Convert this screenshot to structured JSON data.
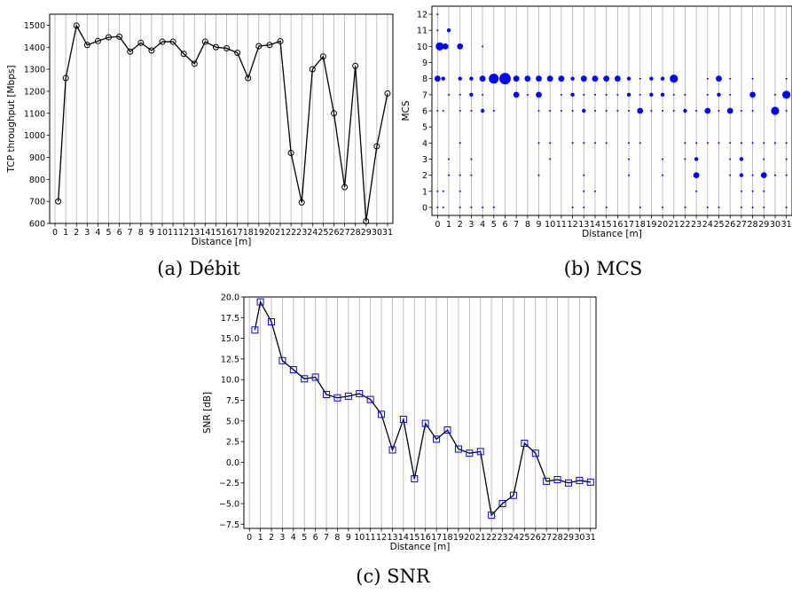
{
  "chart_data": [
    {
      "type": "line",
      "caption": "(a) Débit",
      "xlabel": "Distance [m]",
      "ylabel": "TCP throughput [Mbps]",
      "xlim": [
        -0.5,
        31.5
      ],
      "ylim": [
        600,
        1550
      ],
      "xticks": [
        0,
        1,
        2,
        3,
        4,
        5,
        6,
        7,
        8,
        9,
        10,
        11,
        12,
        13,
        14,
        15,
        16,
        17,
        18,
        19,
        20,
        21,
        22,
        23,
        24,
        25,
        26,
        27,
        28,
        29,
        30,
        31
      ],
      "yticks": [
        600,
        700,
        800,
        900,
        1000,
        1100,
        1200,
        1300,
        1400,
        1500
      ],
      "grid": "vertical",
      "marker": "circle",
      "series": [
        {
          "x": [
            0.3,
            1,
            2,
            3,
            4,
            5,
            6,
            7,
            8,
            9,
            10,
            11,
            12,
            13,
            14,
            15,
            16,
            17,
            18,
            19,
            20,
            21,
            22,
            23,
            24,
            25,
            26,
            27,
            28,
            29,
            30,
            31
          ],
          "values": [
            700,
            1260,
            1498,
            1410,
            1428,
            1445,
            1448,
            1380,
            1420,
            1385,
            1425,
            1425,
            1370,
            1325,
            1425,
            1400,
            1395,
            1375,
            1260,
            1405,
            1410,
            1427,
            920,
            695,
            1300,
            1358,
            1100,
            765,
            1315,
            610,
            950,
            1190
          ]
        }
      ]
    },
    {
      "type": "scatter",
      "caption": "(b) MCS",
      "xlabel": "Distance [m]",
      "ylabel": "MCS",
      "xlim": [
        -0.5,
        31.5
      ],
      "ylim": [
        -0.5,
        12.5
      ],
      "xticks": [
        0,
        1,
        2,
        3,
        4,
        5,
        6,
        7,
        8,
        9,
        10,
        11,
        12,
        13,
        14,
        15,
        16,
        17,
        18,
        19,
        20,
        21,
        22,
        23,
        24,
        25,
        26,
        27,
        28,
        29,
        30,
        31
      ],
      "yticks": [
        0,
        1,
        2,
        3,
        4,
        5,
        6,
        7,
        8,
        9,
        10,
        11,
        12
      ],
      "grid": "vertical",
      "color": "#0000ff",
      "points": [
        {
          "x": 0,
          "y": 12,
          "s": 1
        },
        {
          "x": 0,
          "y": 11,
          "s": 1
        },
        {
          "x": 0.2,
          "y": 10,
          "s": 4
        },
        {
          "x": 0.7,
          "y": 10,
          "s": 3
        },
        {
          "x": 1,
          "y": 11,
          "s": 2
        },
        {
          "x": 0,
          "y": 8,
          "s": 3
        },
        {
          "x": 0.5,
          "y": 8,
          "s": 2
        },
        {
          "x": 0,
          "y": 6,
          "s": 1
        },
        {
          "x": 0.5,
          "y": 6,
          "s": 1
        },
        {
          "x": 0,
          "y": 1,
          "s": 1
        },
        {
          "x": 0.5,
          "y": 1,
          "s": 1
        },
        {
          "x": 0,
          "y": 0,
          "s": 1
        },
        {
          "x": 0.5,
          "y": 0,
          "s": 1
        },
        {
          "x": 1,
          "y": 7,
          "s": 1
        },
        {
          "x": 1,
          "y": 3,
          "s": 1
        },
        {
          "x": 1,
          "y": 2,
          "s": 1
        },
        {
          "x": 2,
          "y": 10,
          "s": 3
        },
        {
          "x": 2,
          "y": 8,
          "s": 2
        },
        {
          "x": 2,
          "y": 7,
          "s": 1
        },
        {
          "x": 2,
          "y": 6,
          "s": 1
        },
        {
          "x": 2,
          "y": 4,
          "s": 1
        },
        {
          "x": 2,
          "y": 2,
          "s": 1
        },
        {
          "x": 2,
          "y": 1,
          "s": 1
        },
        {
          "x": 2,
          "y": 0,
          "s": 1
        },
        {
          "x": 3,
          "y": 8,
          "s": 2
        },
        {
          "x": 3,
          "y": 7,
          "s": 2
        },
        {
          "x": 3,
          "y": 6,
          "s": 1
        },
        {
          "x": 3,
          "y": 3,
          "s": 1
        },
        {
          "x": 3,
          "y": 2,
          "s": 1
        },
        {
          "x": 3,
          "y": 0,
          "s": 1
        },
        {
          "x": 4,
          "y": 10,
          "s": 1
        },
        {
          "x": 4,
          "y": 8,
          "s": 3
        },
        {
          "x": 4,
          "y": 7,
          "s": 1
        },
        {
          "x": 4,
          "y": 6,
          "s": 2
        },
        {
          "x": 4,
          "y": 0,
          "s": 1
        },
        {
          "x": 5,
          "y": 8,
          "s": 5
        },
        {
          "x": 5,
          "y": 6,
          "s": 1
        },
        {
          "x": 5,
          "y": 0,
          "s": 1
        },
        {
          "x": 6,
          "y": 8,
          "s": 6
        },
        {
          "x": 7,
          "y": 8,
          "s": 3
        },
        {
          "x": 7,
          "y": 7,
          "s": 3
        },
        {
          "x": 8,
          "y": 8,
          "s": 3
        },
        {
          "x": 8,
          "y": 7,
          "s": 1
        },
        {
          "x": 9,
          "y": 8,
          "s": 3
        },
        {
          "x": 9,
          "y": 7,
          "s": 3
        },
        {
          "x": 9,
          "y": 6,
          "s": 1
        },
        {
          "x": 9,
          "y": 4,
          "s": 1
        },
        {
          "x": 9,
          "y": 2,
          "s": 1
        },
        {
          "x": 10,
          "y": 8,
          "s": 3
        },
        {
          "x": 10,
          "y": 6,
          "s": 1
        },
        {
          "x": 10,
          "y": 4,
          "s": 1
        },
        {
          "x": 10,
          "y": 3,
          "s": 1
        },
        {
          "x": 11,
          "y": 8,
          "s": 3
        },
        {
          "x": 11,
          "y": 7,
          "s": 1
        },
        {
          "x": 11,
          "y": 6,
          "s": 1
        },
        {
          "x": 12,
          "y": 8,
          "s": 2
        },
        {
          "x": 12,
          "y": 7,
          "s": 2
        },
        {
          "x": 12,
          "y": 6,
          "s": 1
        },
        {
          "x": 12,
          "y": 4,
          "s": 1
        },
        {
          "x": 12,
          "y": 0,
          "s": 1
        },
        {
          "x": 13,
          "y": 8,
          "s": 3
        },
        {
          "x": 13,
          "y": 7,
          "s": 1
        },
        {
          "x": 13,
          "y": 6,
          "s": 2
        },
        {
          "x": 13,
          "y": 4,
          "s": 1
        },
        {
          "x": 13,
          "y": 2,
          "s": 1
        },
        {
          "x": 13,
          "y": 1,
          "s": 1
        },
        {
          "x": 13,
          "y": 0,
          "s": 1
        },
        {
          "x": 14,
          "y": 8,
          "s": 3
        },
        {
          "x": 14,
          "y": 7,
          "s": 1
        },
        {
          "x": 14,
          "y": 6,
          "s": 1
        },
        {
          "x": 14,
          "y": 4,
          "s": 1
        },
        {
          "x": 14,
          "y": 1,
          "s": 1
        },
        {
          "x": 15,
          "y": 8,
          "s": 3
        },
        {
          "x": 15,
          "y": 7,
          "s": 1
        },
        {
          "x": 15,
          "y": 6,
          "s": 1
        },
        {
          "x": 15,
          "y": 4,
          "s": 1
        },
        {
          "x": 15,
          "y": 0,
          "s": 1
        },
        {
          "x": 16,
          "y": 8,
          "s": 3
        },
        {
          "x": 16,
          "y": 7,
          "s": 1
        },
        {
          "x": 16,
          "y": 6,
          "s": 1
        },
        {
          "x": 17,
          "y": 8,
          "s": 2
        },
        {
          "x": 17,
          "y": 7,
          "s": 2
        },
        {
          "x": 17,
          "y": 6,
          "s": 1
        },
        {
          "x": 17,
          "y": 4,
          "s": 1
        },
        {
          "x": 17,
          "y": 3,
          "s": 1
        },
        {
          "x": 17,
          "y": 2,
          "s": 1
        },
        {
          "x": 18,
          "y": 8,
          "s": 1
        },
        {
          "x": 18,
          "y": 7,
          "s": 1
        },
        {
          "x": 18,
          "y": 6,
          "s": 3
        },
        {
          "x": 18,
          "y": 4,
          "s": 1
        },
        {
          "x": 18,
          "y": 0,
          "s": 1
        },
        {
          "x": 19,
          "y": 8,
          "s": 2
        },
        {
          "x": 19,
          "y": 7,
          "s": 2
        },
        {
          "x": 19,
          "y": 6,
          "s": 1
        },
        {
          "x": 20,
          "y": 8,
          "s": 2
        },
        {
          "x": 20,
          "y": 7,
          "s": 2
        },
        {
          "x": 20,
          "y": 6,
          "s": 1
        },
        {
          "x": 20,
          "y": 3,
          "s": 1
        },
        {
          "x": 20,
          "y": 2,
          "s": 1
        },
        {
          "x": 20,
          "y": 0,
          "s": 1
        },
        {
          "x": 21,
          "y": 8,
          "s": 4
        },
        {
          "x": 21,
          "y": 7,
          "s": 1
        },
        {
          "x": 21,
          "y": 6,
          "s": 1
        },
        {
          "x": 22,
          "y": 7,
          "s": 1
        },
        {
          "x": 22,
          "y": 6,
          "s": 2
        },
        {
          "x": 22,
          "y": 4,
          "s": 1
        },
        {
          "x": 22,
          "y": 3,
          "s": 1
        },
        {
          "x": 22,
          "y": 0,
          "s": 1
        },
        {
          "x": 23,
          "y": 6,
          "s": 1
        },
        {
          "x": 23,
          "y": 4,
          "s": 1
        },
        {
          "x": 23,
          "y": 3,
          "s": 2
        },
        {
          "x": 23,
          "y": 2,
          "s": 3
        },
        {
          "x": 23,
          "y": 1,
          "s": 1
        },
        {
          "x": 24,
          "y": 8,
          "s": 1
        },
        {
          "x": 24,
          "y": 7,
          "s": 1
        },
        {
          "x": 24,
          "y": 6,
          "s": 3
        },
        {
          "x": 24,
          "y": 4,
          "s": 1
        },
        {
          "x": 24,
          "y": 0,
          "s": 1
        },
        {
          "x": 25,
          "y": 8,
          "s": 3
        },
        {
          "x": 25,
          "y": 7,
          "s": 2
        },
        {
          "x": 25,
          "y": 6,
          "s": 1
        },
        {
          "x": 25,
          "y": 4,
          "s": 1
        },
        {
          "x": 25,
          "y": 0,
          "s": 1
        },
        {
          "x": 26,
          "y": 8,
          "s": 1
        },
        {
          "x": 26,
          "y": 7,
          "s": 1
        },
        {
          "x": 26,
          "y": 6,
          "s": 3
        },
        {
          "x": 26,
          "y": 4,
          "s": 1
        },
        {
          "x": 26,
          "y": 3,
          "s": 1
        },
        {
          "x": 26,
          "y": 2,
          "s": 1
        },
        {
          "x": 27,
          "y": 6,
          "s": 1
        },
        {
          "x": 27,
          "y": 4,
          "s": 1
        },
        {
          "x": 27,
          "y": 3,
          "s": 2
        },
        {
          "x": 27,
          "y": 2,
          "s": 2
        },
        {
          "x": 27,
          "y": 1,
          "s": 1
        },
        {
          "x": 27,
          "y": 0,
          "s": 1
        },
        {
          "x": 28,
          "y": 8,
          "s": 1
        },
        {
          "x": 28,
          "y": 7,
          "s": 3
        },
        {
          "x": 28,
          "y": 6,
          "s": 1
        },
        {
          "x": 28,
          "y": 4,
          "s": 1
        },
        {
          "x": 28,
          "y": 2,
          "s": 1
        },
        {
          "x": 28,
          "y": 1,
          "s": 1
        },
        {
          "x": 28,
          "y": 0,
          "s": 1
        },
        {
          "x": 29,
          "y": 4,
          "s": 1
        },
        {
          "x": 29,
          "y": 3,
          "s": 1
        },
        {
          "x": 29,
          "y": 2,
          "s": 3
        },
        {
          "x": 29,
          "y": 1,
          "s": 1
        },
        {
          "x": 29,
          "y": 0,
          "s": 1
        },
        {
          "x": 30,
          "y": 7,
          "s": 1
        },
        {
          "x": 30,
          "y": 6,
          "s": 4
        },
        {
          "x": 30,
          "y": 4,
          "s": 1
        },
        {
          "x": 30,
          "y": 2,
          "s": 1
        },
        {
          "x": 31,
          "y": 8,
          "s": 1
        },
        {
          "x": 31,
          "y": 7,
          "s": 4
        },
        {
          "x": 31,
          "y": 6,
          "s": 1
        },
        {
          "x": 31,
          "y": 4,
          "s": 1
        },
        {
          "x": 31,
          "y": 3,
          "s": 1
        },
        {
          "x": 31,
          "y": 2,
          "s": 1
        },
        {
          "x": 31,
          "y": 0,
          "s": 1
        }
      ]
    },
    {
      "type": "line",
      "caption": "(c) SNR",
      "xlabel": "Distance [m]",
      "ylabel": "SNR [dB]",
      "xlim": [
        -0.5,
        31.5
      ],
      "ylim": [
        -8,
        20
      ],
      "xticks": [
        0,
        1,
        2,
        3,
        4,
        5,
        6,
        7,
        8,
        9,
        10,
        11,
        12,
        13,
        14,
        15,
        16,
        17,
        18,
        19,
        20,
        21,
        22,
        23,
        24,
        25,
        26,
        27,
        28,
        29,
        30,
        31
      ],
      "yticks": [
        -7.5,
        -5.0,
        -2.5,
        0.0,
        2.5,
        5.0,
        7.5,
        10.0,
        12.5,
        15.0,
        17.5,
        20.0
      ],
      "ytick_labels": [
        "−7.5",
        "−5.0",
        "−2.5",
        "0.0",
        "2.5",
        "5.0",
        "7.5",
        "10.0",
        "12.5",
        "15.0",
        "17.5",
        "20.0"
      ],
      "grid": "vertical",
      "marker": "square",
      "marker_color": "#0000ff",
      "series": [
        {
          "x": [
            0.5,
            1,
            2,
            3,
            4,
            5,
            6,
            7,
            8,
            9,
            10,
            11,
            12,
            13,
            14,
            15,
            16,
            17,
            18,
            19,
            20,
            21,
            22,
            23,
            24,
            25,
            26,
            27,
            28,
            29,
            30,
            31
          ],
          "values": [
            16.0,
            19.4,
            17.0,
            12.3,
            11.2,
            10.1,
            10.3,
            8.2,
            7.8,
            8.0,
            8.3,
            7.6,
            5.8,
            1.5,
            5.2,
            -2.0,
            4.7,
            2.8,
            3.9,
            1.6,
            1.1,
            1.3,
            -6.4,
            -5.0,
            -4.0,
            2.3,
            1.1,
            -2.3,
            -2.1,
            -2.5,
            -2.2,
            -2.4
          ]
        }
      ]
    }
  ]
}
